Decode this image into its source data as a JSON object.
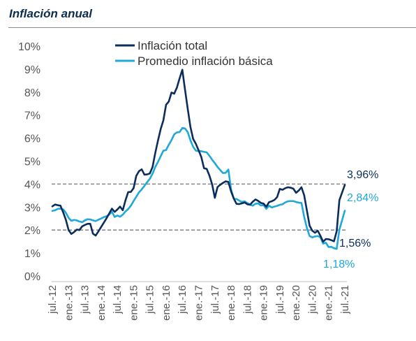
{
  "title": "Inflación anual",
  "chart_data": {
    "type": "line",
    "title": "Inflación anual",
    "xlabel": "",
    "ylabel": "",
    "ylim": [
      0,
      10
    ],
    "y_ticks": [
      "0%",
      "1%",
      "2%",
      "3%",
      "4%",
      "5%",
      "6%",
      "7%",
      "8%",
      "9%",
      "10%"
    ],
    "x_ticks": [
      "jul.-12",
      "ene.-13",
      "jul.-13",
      "ene.-14",
      "jul.-14",
      "ene.-15",
      "jul.-15",
      "ene.-16",
      "jul.-16",
      "ene.-17",
      "jul.-17",
      "ene.-18",
      "jul.-18",
      "ene.-19",
      "jul.-19",
      "ene.-20",
      "jul.-20",
      "ene.-21",
      "jul.-21"
    ],
    "x": [
      "jul.-12",
      "ago.-12",
      "sep.-12",
      "oct.-12",
      "nov.-12",
      "dic.-12",
      "ene.-13",
      "feb.-13",
      "mar.-13",
      "abr.-13",
      "may.-13",
      "jun.-13",
      "jul.-13",
      "ago.-13",
      "sep.-13",
      "oct.-13",
      "nov.-13",
      "dic.-13",
      "ene.-14",
      "feb.-14",
      "mar.-14",
      "abr.-14",
      "may.-14",
      "jun.-14",
      "jul.-14",
      "ago.-14",
      "sep.-14",
      "oct.-14",
      "nov.-14",
      "dic.-14",
      "ene.-15",
      "feb.-15",
      "mar.-15",
      "abr.-15",
      "may.-15",
      "jun.-15",
      "jul.-15",
      "ago.-15",
      "sep.-15",
      "oct.-15",
      "nov.-15",
      "dic.-15",
      "ene.-16",
      "feb.-16",
      "mar.-16",
      "abr.-16",
      "may.-16",
      "jun.-16",
      "jul.-16",
      "ago.-16",
      "sep.-16",
      "oct.-16",
      "nov.-16",
      "dic.-16",
      "ene.-17",
      "feb.-17",
      "mar.-17",
      "abr.-17",
      "may.-17",
      "jun.-17",
      "jul.-17",
      "ago.-17",
      "sep.-17",
      "oct.-17",
      "nov.-17",
      "dic.-17",
      "ene.-18",
      "feb.-18",
      "mar.-18",
      "abr.-18",
      "may.-18",
      "jun.-18",
      "jul.-18",
      "ago.-18",
      "sep.-18",
      "oct.-18",
      "nov.-18",
      "dic.-18",
      "ene.-19",
      "feb.-19",
      "mar.-19",
      "abr.-19",
      "may.-19",
      "jun.-19",
      "jul.-19",
      "ago.-19",
      "sep.-19",
      "oct.-19",
      "nov.-19",
      "dic.-19",
      "ene.-20",
      "feb.-20",
      "mar.-20",
      "abr.-20",
      "may.-20",
      "jun.-20",
      "jul.-20",
      "ago.-20",
      "sep.-20",
      "oct.-20",
      "nov.-20",
      "dic.-20",
      "ene.-21",
      "feb.-21",
      "mar.-21",
      "abr.-21",
      "may.-21",
      "jun.-21",
      "jul.-21"
    ],
    "series": [
      {
        "name": "Inflación total",
        "color": "#0b2d5e",
        "values": [
          3.03,
          3.11,
          3.08,
          3.06,
          2.77,
          2.44,
          2.0,
          1.83,
          1.91,
          2.02,
          2.0,
          2.16,
          2.22,
          2.27,
          2.27,
          1.84,
          1.76,
          1.94,
          2.13,
          2.32,
          2.51,
          2.72,
          2.93,
          2.79,
          2.89,
          3.02,
          2.86,
          3.29,
          3.65,
          3.66,
          3.82,
          4.36,
          4.56,
          4.64,
          4.41,
          4.42,
          4.46,
          4.74,
          5.35,
          5.89,
          6.39,
          6.77,
          7.45,
          7.59,
          7.98,
          7.93,
          8.2,
          8.6,
          8.97,
          8.1,
          7.27,
          6.48,
          5.96,
          5.75,
          5.47,
          5.18,
          4.69,
          4.66,
          4.37,
          3.99,
          3.4,
          3.87,
          3.97,
          4.05,
          4.12,
          4.09,
          3.68,
          3.37,
          3.14,
          3.13,
          3.16,
          3.2,
          3.12,
          3.1,
          3.23,
          3.33,
          3.27,
          3.18,
          3.15,
          3.01,
          3.21,
          3.25,
          3.31,
          3.43,
          3.79,
          3.75,
          3.82,
          3.86,
          3.84,
          3.8,
          3.62,
          3.72,
          3.86,
          3.51,
          2.85,
          2.19,
          1.97,
          1.88,
          1.97,
          1.75,
          1.49,
          1.61,
          1.6,
          1.56,
          1.51,
          1.95,
          3.3,
          3.63,
          3.96
        ]
      },
      {
        "name": "Promedio inflación básica",
        "color": "#1fa8d8",
        "values": [
          2.83,
          2.86,
          2.92,
          2.93,
          2.9,
          2.75,
          2.53,
          2.4,
          2.44,
          2.42,
          2.37,
          2.34,
          2.42,
          2.47,
          2.46,
          2.42,
          2.39,
          2.45,
          2.5,
          2.56,
          2.6,
          2.67,
          2.8,
          2.57,
          2.63,
          2.58,
          2.67,
          2.81,
          2.91,
          3.06,
          3.26,
          3.45,
          3.64,
          3.77,
          3.92,
          4.08,
          4.23,
          4.45,
          4.74,
          4.96,
          5.21,
          5.45,
          5.48,
          5.71,
          5.91,
          6.16,
          6.25,
          6.26,
          6.44,
          6.42,
          6.26,
          5.9,
          5.62,
          5.45,
          5.43,
          5.43,
          5.4,
          5.38,
          5.23,
          5.06,
          4.91,
          4.74,
          4.61,
          4.48,
          4.49,
          4.63,
          3.76,
          3.37,
          3.35,
          3.28,
          3.22,
          3.25,
          3.17,
          3.11,
          3.06,
          3.14,
          3.16,
          3.07,
          3.09,
          2.92,
          3.06,
          2.98,
          3.02,
          3.05,
          3.1,
          3.12,
          3.2,
          3.25,
          3.26,
          3.26,
          3.22,
          3.19,
          3.18,
          2.57,
          2.09,
          1.74,
          1.68,
          1.72,
          1.74,
          1.68,
          1.41,
          1.45,
          1.26,
          1.27,
          1.21,
          1.18,
          2.02,
          2.43,
          2.84
        ]
      }
    ],
    "reference_lines": [
      4,
      2
    ],
    "annotations": [
      {
        "text": "3,96%",
        "series": 0,
        "color": "#0b2d5e"
      },
      {
        "text": "2,84%",
        "series": 1,
        "color": "#1fa8d8"
      },
      {
        "text": "1,56%",
        "series": 0,
        "color": "#0b2d5e"
      },
      {
        "text": "1,18%",
        "series": 1,
        "color": "#1fa8d8"
      }
    ],
    "grid": false,
    "legend": "top"
  }
}
